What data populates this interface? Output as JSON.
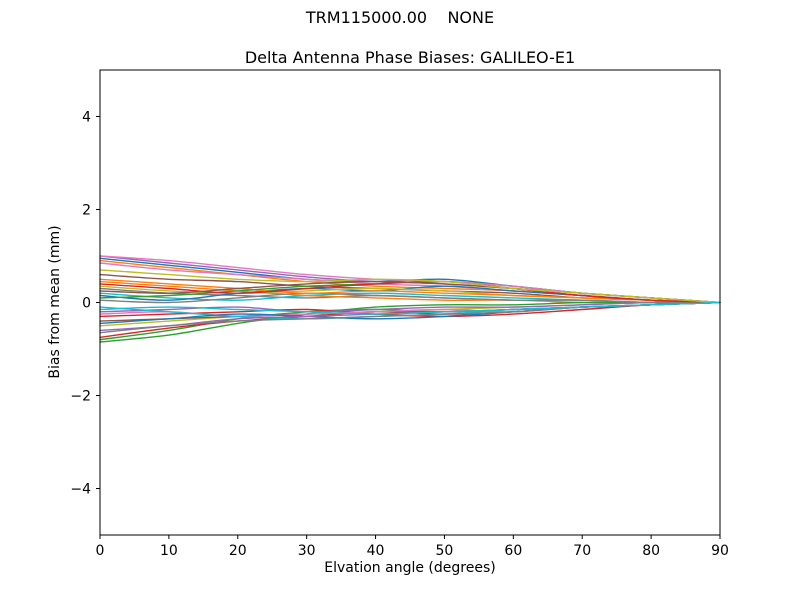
{
  "chart_data": {
    "type": "line",
    "suptitle": "TRM115000.00    NONE",
    "title": "Delta Antenna Phase Biases: GALILEO-E1",
    "xlabel": "Elvation angle (degrees)",
    "ylabel": "Bias from mean (mm)",
    "xlim": [
      0,
      90
    ],
    "ylim": [
      -5,
      5
    ],
    "xticks": [
      0,
      10,
      20,
      30,
      40,
      50,
      60,
      70,
      80,
      90
    ],
    "xtick_labels": [
      "0",
      "10",
      "20",
      "30",
      "40",
      "50",
      "60",
      "70",
      "80",
      "90"
    ],
    "yticks": [
      -4,
      -2,
      0,
      2,
      4
    ],
    "ytick_labels": [
      "−4",
      "−2",
      "0",
      "2",
      "4"
    ],
    "grid": false,
    "legend": "none",
    "x": [
      0,
      10,
      20,
      30,
      40,
      50,
      60,
      70,
      80,
      90
    ],
    "series": [
      {
        "color": "#1f77b4",
        "values": [
          0.95,
          0.8,
          0.65,
          0.5,
          0.45,
          0.5,
          0.35,
          0.2,
          0.1,
          0.0
        ]
      },
      {
        "color": "#ff7f0e",
        "values": [
          0.9,
          0.75,
          0.6,
          0.45,
          0.35,
          0.3,
          0.25,
          0.15,
          0.05,
          0.0
        ]
      },
      {
        "color": "#2ca02c",
        "values": [
          -0.8,
          -0.6,
          -0.35,
          -0.2,
          -0.15,
          -0.2,
          -0.15,
          -0.1,
          -0.05,
          0.0
        ]
      },
      {
        "color": "#d62728",
        "values": [
          -0.75,
          -0.55,
          -0.4,
          -0.3,
          -0.2,
          -0.25,
          -0.2,
          -0.1,
          -0.05,
          0.0
        ]
      },
      {
        "color": "#9467bd",
        "values": [
          1.0,
          0.85,
          0.7,
          0.55,
          0.45,
          0.4,
          0.3,
          0.15,
          0.05,
          0.0
        ]
      },
      {
        "color": "#8c564b",
        "values": [
          0.6,
          0.5,
          0.45,
          0.35,
          0.3,
          0.25,
          0.2,
          0.1,
          0.05,
          0.0
        ]
      },
      {
        "color": "#e377c2",
        "values": [
          0.85,
          0.7,
          0.6,
          0.5,
          0.4,
          0.35,
          0.25,
          0.15,
          0.05,
          0.0
        ]
      },
      {
        "color": "#7f7f7f",
        "values": [
          0.3,
          0.2,
          0.15,
          0.1,
          0.15,
          0.1,
          0.05,
          0.05,
          0.0,
          0.0
        ]
      },
      {
        "color": "#bcbd22",
        "values": [
          -0.5,
          -0.4,
          -0.3,
          -0.25,
          -0.2,
          -0.15,
          -0.1,
          -0.05,
          0.0,
          0.0
        ]
      },
      {
        "color": "#17becf",
        "values": [
          0.2,
          0.1,
          0.05,
          0.15,
          0.2,
          0.15,
          0.1,
          0.05,
          0.0,
          0.0
        ]
      },
      {
        "color": "#1f77b4",
        "values": [
          0.15,
          0.05,
          0.2,
          0.3,
          0.25,
          0.35,
          0.25,
          0.15,
          0.05,
          0.0
        ]
      },
      {
        "color": "#ff7f0e",
        "values": [
          0.45,
          0.35,
          0.25,
          0.15,
          0.1,
          0.05,
          0.05,
          0.0,
          0.0,
          0.0
        ]
      },
      {
        "color": "#2ca02c",
        "values": [
          -0.85,
          -0.7,
          -0.45,
          -0.25,
          -0.1,
          -0.05,
          -0.05,
          0.0,
          0.0,
          0.0
        ]
      },
      {
        "color": "#d62728",
        "values": [
          -0.3,
          -0.25,
          -0.2,
          -0.15,
          -0.25,
          -0.3,
          -0.25,
          -0.15,
          -0.05,
          0.0
        ]
      },
      {
        "color": "#9467bd",
        "values": [
          -0.2,
          -0.15,
          -0.1,
          -0.2,
          -0.15,
          -0.1,
          -0.1,
          -0.05,
          0.0,
          0.0
        ]
      },
      {
        "color": "#8c564b",
        "values": [
          -0.4,
          -0.35,
          -0.3,
          -0.25,
          -0.2,
          -0.2,
          -0.15,
          -0.1,
          -0.05,
          0.0
        ]
      },
      {
        "color": "#e377c2",
        "values": [
          -0.25,
          -0.2,
          -0.3,
          -0.25,
          -0.2,
          -0.15,
          -0.2,
          -0.1,
          -0.05,
          0.0
        ]
      },
      {
        "color": "#7f7f7f",
        "values": [
          0.05,
          0.0,
          0.1,
          0.2,
          0.15,
          0.1,
          0.05,
          0.05,
          0.0,
          0.0
        ]
      },
      {
        "color": "#bcbd22",
        "values": [
          0.35,
          0.25,
          0.2,
          0.25,
          0.3,
          0.25,
          0.15,
          0.1,
          0.05,
          0.0
        ]
      },
      {
        "color": "#17becf",
        "values": [
          -0.1,
          -0.2,
          -0.3,
          -0.35,
          -0.3,
          -0.25,
          -0.15,
          -0.1,
          -0.05,
          0.0
        ]
      },
      {
        "color": "#1f77b4",
        "values": [
          -0.45,
          -0.35,
          -0.25,
          -0.3,
          -0.35,
          -0.3,
          -0.2,
          -0.1,
          -0.05,
          0.0
        ]
      },
      {
        "color": "#ff7f0e",
        "values": [
          0.5,
          0.4,
          0.3,
          0.2,
          0.25,
          0.2,
          0.15,
          0.1,
          0.05,
          0.0
        ]
      },
      {
        "color": "#2ca02c",
        "values": [
          0.1,
          0.15,
          0.25,
          0.35,
          0.4,
          0.45,
          0.35,
          0.2,
          0.1,
          0.0
        ]
      },
      {
        "color": "#d62728",
        "values": [
          0.4,
          0.3,
          0.2,
          0.3,
          0.4,
          0.45,
          0.3,
          0.15,
          0.05,
          0.0
        ]
      },
      {
        "color": "#9467bd",
        "values": [
          -0.6,
          -0.5,
          -0.35,
          -0.3,
          -0.25,
          -0.2,
          -0.15,
          -0.1,
          -0.05,
          0.0
        ]
      },
      {
        "color": "#8c564b",
        "values": [
          0.25,
          0.2,
          0.3,
          0.4,
          0.45,
          0.4,
          0.3,
          0.2,
          0.1,
          0.0
        ]
      },
      {
        "color": "#e377c2",
        "values": [
          1.0,
          0.9,
          0.75,
          0.6,
          0.5,
          0.45,
          0.35,
          0.2,
          0.1,
          0.0
        ]
      },
      {
        "color": "#7f7f7f",
        "values": [
          -0.65,
          -0.5,
          -0.4,
          -0.35,
          -0.3,
          -0.25,
          -0.2,
          -0.1,
          -0.05,
          0.0
        ]
      },
      {
        "color": "#bcbd22",
        "values": [
          0.7,
          0.6,
          0.5,
          0.45,
          0.5,
          0.45,
          0.3,
          0.2,
          0.1,
          0.0
        ]
      },
      {
        "color": "#17becf",
        "values": [
          -0.15,
          -0.1,
          -0.15,
          -0.2,
          -0.25,
          -0.2,
          -0.15,
          -0.1,
          -0.05,
          0.0
        ]
      }
    ]
  }
}
